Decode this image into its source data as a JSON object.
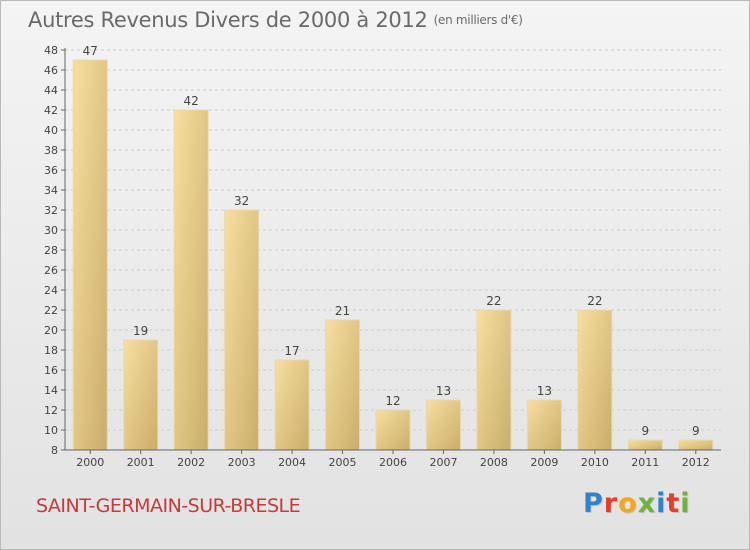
{
  "title": "Autres Revenus Divers de 2000 à 2012",
  "subtitle": "(en milliers d'€)",
  "commune": "SAINT-GERMAIN-SUR-BRESLE",
  "brand": {
    "letters": [
      "P",
      "r",
      "o",
      "x",
      "i",
      "t",
      "i"
    ],
    "colors": [
      "#2e83c9",
      "#e0402c",
      "#f2a81d",
      "#6db33f",
      "#2e83c9",
      "#e0402c",
      "#6db33f"
    ]
  },
  "colors": {
    "bar_light": "#f8dfa0",
    "bar_dark": "#c9ad6a",
    "axis": "#666666",
    "text": "#444444",
    "commune": "#c63a3a"
  },
  "chart_data": {
    "type": "bar",
    "title": "Autres Revenus Divers de 2000 à 2012",
    "subtitle": "(en milliers d'€)",
    "categories": [
      "2000",
      "2001",
      "2002",
      "2003",
      "2004",
      "2005",
      "2006",
      "2007",
      "2008",
      "2009",
      "2010",
      "2011",
      "2012"
    ],
    "values": [
      47,
      19,
      42,
      32,
      17,
      21,
      12,
      13,
      22,
      13,
      22,
      9,
      9
    ],
    "ylim": [
      8,
      48
    ],
    "yticks": [
      8,
      10,
      12,
      14,
      16,
      18,
      20,
      22,
      24,
      26,
      28,
      30,
      32,
      34,
      36,
      38,
      40,
      42,
      44,
      46,
      48
    ],
    "grid": true,
    "legend": "none",
    "data_labels": true
  }
}
